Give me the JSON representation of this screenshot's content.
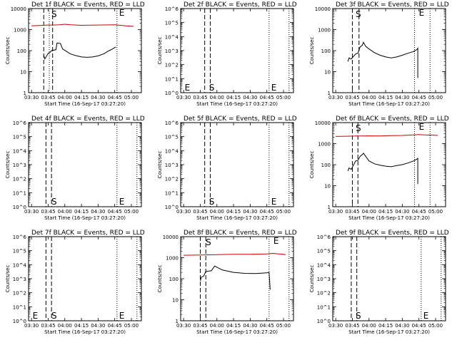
{
  "window": {
    "background": "#ffffff"
  },
  "chart_data": [
    {
      "type": "line",
      "title": "Det 1f BLACK = Events, RED = LLD",
      "xlabel": "Start Time (16-Sep-17 03:27:20)",
      "ylabel": "Counts/sec",
      "xticks": [
        "03:30",
        "03:45",
        "04:00",
        "04:15",
        "04:30",
        "04:45",
        "05:00"
      ],
      "yticks": [
        "1",
        "10",
        "100",
        "1000",
        "10000"
      ],
      "ylim": [
        1,
        10000
      ],
      "log_y": true,
      "vlines": {
        "dashed": [
          "03:41",
          "03:49"
        ],
        "dotted": [
          "03:46",
          "04:47"
        ]
      },
      "markers": [
        {
          "text": "S",
          "time": "03:46"
        },
        {
          "text": "E",
          "time": "04:47"
        }
      ],
      "series": [
        {
          "color": "#000000",
          "points": [
            [
              "03:41",
              60
            ],
            [
              "03:42",
              40
            ],
            [
              "03:45",
              75
            ],
            [
              "03:47",
              85
            ],
            [
              "03:48",
              100
            ],
            [
              "03:52",
              110
            ],
            [
              "03:53",
              230
            ],
            [
              "03:56",
              220
            ],
            [
              "03:58",
              120
            ],
            [
              "04:05",
              70
            ],
            [
              "04:10",
              58
            ],
            [
              "04:15",
              50
            ],
            [
              "04:20",
              48
            ],
            [
              "04:25",
              50
            ],
            [
              "04:30",
              56
            ],
            [
              "04:35",
              70
            ],
            [
              "04:40",
              100
            ],
            [
              "04:43",
              120
            ],
            [
              "04:45",
              140
            ],
            [
              "04:46",
              150
            ]
          ]
        },
        {
          "color": "#d00000",
          "points": [
            [
              "03:30",
              1500
            ],
            [
              "03:40",
              1600
            ],
            [
              "03:45",
              1650
            ],
            [
              "03:50",
              1650
            ],
            [
              "03:55",
              1700
            ],
            [
              "04:00",
              1800
            ],
            [
              "04:05",
              1700
            ],
            [
              "04:15",
              1600
            ],
            [
              "04:30",
              1650
            ],
            [
              "04:45",
              1700
            ],
            [
              "04:50",
              1600
            ],
            [
              "04:55",
              1500
            ],
            [
              "05:00",
              1450
            ],
            [
              "05:02",
              1450
            ]
          ]
        }
      ]
    },
    {
      "type": "line",
      "title": "Det 2f BLACK = Events, RED = LLD",
      "xlabel": "Start Time (16-Sep-17 03:27:20)",
      "ylabel": "Counts/sec",
      "xticks": [
        "03:30",
        "03:45",
        "04:00",
        "04:15",
        "04:30",
        "04:45",
        "05:00"
      ],
      "yticks": [
        "10^0",
        "10^1",
        "10^2",
        "10^3",
        "10^4",
        "10^5",
        "10^6"
      ],
      "ylim": [
        1,
        1000000
      ],
      "log_y": true,
      "vlines": {
        "dashed": [
          "03:49",
          "03:54"
        ],
        "dotted": [
          "04:47",
          "05:05"
        ]
      },
      "markers": [
        {
          "text": "E",
          "time": "03:29"
        },
        {
          "text": "S",
          "time": "03:51"
        },
        {
          "text": "E",
          "time": "04:47"
        }
      ],
      "series": []
    },
    {
      "type": "line",
      "title": "Det 3f BLACK = Events, RED = LLD",
      "xlabel": "Start Time (16-Sep-17 03:27:20)",
      "ylabel": "Counts/sec",
      "xticks": [
        "03:30",
        "03:45",
        "04:00",
        "04:15",
        "04:30",
        "04:45",
        "05:00"
      ],
      "yticks": [
        "1",
        "10",
        "100",
        "1000",
        "10000"
      ],
      "ylim": [
        1,
        10000
      ],
      "log_y": true,
      "vlines": {
        "dashed": [
          "03:45",
          "03:51"
        ],
        "dotted": [
          "04:41",
          "04:55"
        ]
      },
      "markers": [
        {
          "text": "S",
          "time": "03:46"
        },
        {
          "text": "E",
          "time": "04:43"
        }
      ],
      "series": [
        {
          "color": "#000000",
          "points": [
            [
              "03:41",
              30
            ],
            [
              "03:42",
              45
            ],
            [
              "03:44",
              40
            ],
            [
              "03:48",
              70
            ],
            [
              "03:50",
              75
            ],
            [
              "03:52",
              150
            ],
            [
              "03:54",
              180
            ],
            [
              "03:55",
              250
            ],
            [
              "03:57",
              160
            ],
            [
              "04:00",
              120
            ],
            [
              "04:05",
              80
            ],
            [
              "04:10",
              60
            ],
            [
              "04:15",
              50
            ],
            [
              "04:20",
              45
            ],
            [
              "04:25",
              50
            ],
            [
              "04:30",
              60
            ],
            [
              "04:35",
              75
            ],
            [
              "04:40",
              90
            ],
            [
              "04:43",
              110
            ],
            [
              "04:44",
              130
            ],
            [
              "04:44",
              5
            ]
          ]
        }
      ]
    },
    {
      "type": "line",
      "title": "Det 4f BLACK = Events, RED = LLD",
      "xlabel": "Start Time (16-Sep-17 03:27:20)",
      "ylabel": "Counts/sec",
      "xticks": [
        "03:30",
        "03:45",
        "04:00",
        "04:15",
        "04:30",
        "04:45",
        "05:00"
      ],
      "yticks": [
        "10^0",
        "10^1",
        "10^2",
        "10^3",
        "10^4",
        "10^5",
        "10^6"
      ],
      "ylim": [
        1,
        1000000
      ],
      "log_y": true,
      "vlines": {
        "dashed": [
          "03:43",
          "03:48"
        ],
        "dotted": [
          "04:47",
          "05:05"
        ]
      },
      "markers": [
        {
          "text": "S",
          "time": "03:46"
        },
        {
          "text": "E",
          "time": "04:47"
        }
      ],
      "series": []
    },
    {
      "type": "line",
      "title": "Det 5f BLACK = Events, RED = LLD",
      "xlabel": "Start Time (16-Sep-17 03:27:20)",
      "ylabel": "Counts/sec",
      "xticks": [
        "03:30",
        "03:45",
        "04:00",
        "04:15",
        "04:30",
        "04:45",
        "05:00"
      ],
      "yticks": [
        "10^0",
        "10^1",
        "10^2",
        "10^3",
        "10^4",
        "10^5",
        "10^6"
      ],
      "ylim": [
        1,
        1000000
      ],
      "log_y": true,
      "vlines": {
        "dashed": [
          "03:49",
          "03:54"
        ],
        "dotted": [
          "04:47",
          "05:05"
        ]
      },
      "markers": [
        {
          "text": "S",
          "time": "03:51"
        },
        {
          "text": "E",
          "time": "04:47"
        }
      ],
      "series": []
    },
    {
      "type": "line",
      "title": "Det 6f BLACK = Events, RED = LLD",
      "xlabel": "Start Time (16-Sep-17 03:27:20)",
      "ylabel": "Counts/sec",
      "xticks": [
        "03:30",
        "03:45",
        "04:00",
        "04:15",
        "04:30",
        "04:45",
        "05:00"
      ],
      "yticks": [
        "1",
        "10",
        "100",
        "1000",
        "10000"
      ],
      "ylim": [
        1,
        10000
      ],
      "log_y": true,
      "vlines": {
        "dashed": [
          "03:45",
          "03:50"
        ],
        "dotted": [
          "04:41",
          "04:55"
        ]
      },
      "markers": [
        {
          "text": "S",
          "time": "03:46"
        },
        {
          "text": "E",
          "time": "04:43"
        }
      ],
      "series": [
        {
          "color": "#000000",
          "points": [
            [
              "03:41",
              50
            ],
            [
              "03:42",
              70
            ],
            [
              "03:44",
              60
            ],
            [
              "03:48",
              150
            ],
            [
              "03:50",
              160
            ],
            [
              "03:52",
              250
            ],
            [
              "03:54",
              300
            ],
            [
              "03:55",
              350
            ],
            [
              "03:57",
              250
            ],
            [
              "04:00",
              150
            ],
            [
              "04:05",
              110
            ],
            [
              "04:10",
              95
            ],
            [
              "04:15",
              85
            ],
            [
              "04:20",
              80
            ],
            [
              "04:25",
              90
            ],
            [
              "04:30",
              100
            ],
            [
              "04:35",
              120
            ],
            [
              "04:40",
              150
            ],
            [
              "04:43",
              180
            ],
            [
              "04:44",
              200
            ],
            [
              "04:44",
              12
            ]
          ]
        },
        {
          "color": "#d00000",
          "points": [
            [
              "03:30",
              2200
            ],
            [
              "03:40",
              2250
            ],
            [
              "03:50",
              2300
            ],
            [
              "04:00",
              2350
            ],
            [
              "04:10",
              2300
            ],
            [
              "04:20",
              2400
            ],
            [
              "04:30",
              2450
            ],
            [
              "04:40",
              2600
            ],
            [
              "04:45",
              2700
            ],
            [
              "04:50",
              2600
            ],
            [
              "05:00",
              2500
            ],
            [
              "05:02",
              2450
            ]
          ]
        }
      ]
    },
    {
      "type": "line",
      "title": "Det 7f BLACK = Events, RED = LLD",
      "xlabel": "Start Time (16-Sep-17 03:27:20)",
      "ylabel": "Counts/sec",
      "xticks": [
        "03:30",
        "03:45",
        "04:00",
        "04:15",
        "04:30",
        "04:45",
        "05:00"
      ],
      "yticks": [
        "10^0",
        "10^1",
        "10^2",
        "10^3",
        "10^4",
        "10^5",
        "10^6"
      ],
      "ylim": [
        1,
        1000000
      ],
      "log_y": true,
      "vlines": {
        "dashed": [
          "03:43",
          "03:48"
        ],
        "dotted": [
          "04:47",
          "05:05"
        ]
      },
      "markers": [
        {
          "text": "E",
          "time": "03:29"
        },
        {
          "text": "S",
          "time": "03:46"
        },
        {
          "text": "E",
          "time": "04:47"
        }
      ],
      "series": []
    },
    {
      "type": "line",
      "title": "Det 8f BLACK = Events, RED = LLD",
      "xlabel": "Start Time (16-Sep-17 03:27:20)",
      "ylabel": "Counts/sec",
      "xticks": [
        "03:30",
        "03:45",
        "04:00",
        "04:15",
        "04:30",
        "04:45",
        "05:00"
      ],
      "yticks": [
        "1",
        "10",
        "100",
        "1000",
        "10000"
      ],
      "ylim": [
        1,
        10000
      ],
      "log_y": true,
      "vlines": {
        "dashed": [
          "03:45",
          "03:50"
        ],
        "dotted": [
          "04:47",
          "05:05"
        ]
      },
      "markers": [
        {
          "text": "S",
          "time": "03:48"
        },
        {
          "text": "E",
          "time": "04:49"
        }
      ],
      "series": [
        {
          "color": "#000000",
          "points": [
            [
              "03:45",
              80
            ],
            [
              "03:46",
              120
            ],
            [
              "03:48",
              130
            ],
            [
              "03:50",
              220
            ],
            [
              "03:55",
              240
            ],
            [
              "03:58",
              400
            ],
            [
              "04:00",
              350
            ],
            [
              "04:05",
              260
            ],
            [
              "04:15",
              200
            ],
            [
              "04:25",
              180
            ],
            [
              "04:35",
              175
            ],
            [
              "04:45",
              190
            ],
            [
              "04:47",
              200
            ],
            [
              "04:48",
              30
            ]
          ]
        },
        {
          "color": "#d00000",
          "points": [
            [
              "03:30",
              1300
            ],
            [
              "03:45",
              1350
            ],
            [
              "04:00",
              1400
            ],
            [
              "04:15",
              1450
            ],
            [
              "04:30",
              1450
            ],
            [
              "04:45",
              1500
            ],
            [
              "04:50",
              1600
            ],
            [
              "05:00",
              1450
            ],
            [
              "05:02",
              1400
            ]
          ]
        }
      ]
    },
    {
      "type": "line",
      "title": "Det 9f BLACK = Events, RED = LLD",
      "xlabel": "Start Time (16-Sep-17 03:27:20)",
      "ylabel": "Counts/sec",
      "xticks": [
        "03:30",
        "03:45",
        "04:00",
        "04:15",
        "04:30",
        "04:45",
        "05:00"
      ],
      "yticks": [
        "10^0",
        "10^1",
        "10^2",
        "10^3",
        "10^4",
        "10^5",
        "10^6"
      ],
      "ylim": [
        1,
        1000000
      ],
      "log_y": true,
      "vlines": {
        "dashed": [
          "03:44",
          "03:49"
        ],
        "dotted": [
          "04:47",
          "05:05"
        ]
      },
      "markers": [
        {
          "text": "S",
          "time": "03:46"
        },
        {
          "text": "E",
          "time": "04:47"
        }
      ],
      "series": []
    }
  ]
}
